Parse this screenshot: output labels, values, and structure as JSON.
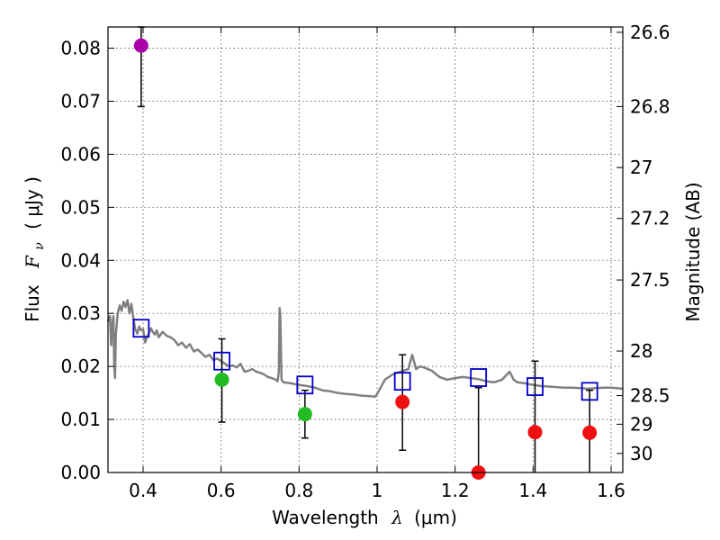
{
  "chart_data": {
    "type": "scatter",
    "xlabel_prefix": "Wavelength",
    "xlabel_symbol": "λ",
    "xlabel_unit": "(μm)",
    "ylabel_prefix": "Flux",
    "ylabel_symbol": "F",
    "ylabel_subscript": "ν",
    "ylabel_unit": "( μJy )",
    "y2label": "Magnitude (AB)",
    "xlim": [
      0.31,
      1.63
    ],
    "ylim": [
      0.0,
      0.084
    ],
    "x_ticks": [
      0.4,
      0.6,
      0.8,
      1.0,
      1.2,
      1.4,
      1.6
    ],
    "x_tick_labels": [
      "0.4",
      "0.6",
      "0.8",
      "1",
      "1.2",
      "1.4",
      "1.6"
    ],
    "y_ticks": [
      0.0,
      0.01,
      0.02,
      0.03,
      0.04,
      0.05,
      0.06,
      0.07,
      0.08
    ],
    "y_tick_labels": [
      "0.00",
      "0.01",
      "0.02",
      "0.03",
      "0.04",
      "0.05",
      "0.06",
      "0.07",
      "0.08"
    ],
    "y2_ticks": [
      {
        "label": "26.6",
        "flux": 0.083
      },
      {
        "label": "26.8",
        "flux": 0.069
      },
      {
        "label": "27",
        "flux": 0.0575
      },
      {
        "label": "27.2",
        "flux": 0.0479
      },
      {
        "label": "27.5",
        "flux": 0.0363
      },
      {
        "label": "28",
        "flux": 0.0229
      },
      {
        "label": "28.5",
        "flux": 0.0145
      },
      {
        "label": "29",
        "flux": 0.0091
      },
      {
        "label": "30",
        "flux": 0.0036
      }
    ],
    "colors": {
      "model": "#808080",
      "model_boxes": "#0000cc",
      "purple": "#aa00aa",
      "green": "#22bb22",
      "red": "#ee1111",
      "errorbar": "#000000"
    },
    "model_spectrum": [
      [
        0.31,
        0.0285
      ],
      [
        0.315,
        0.0295
      ],
      [
        0.318,
        0.024
      ],
      [
        0.321,
        0.028
      ],
      [
        0.324,
        0.0295
      ],
      [
        0.326,
        0.02
      ],
      [
        0.328,
        0.0178
      ],
      [
        0.33,
        0.026
      ],
      [
        0.335,
        0.03
      ],
      [
        0.34,
        0.0315
      ],
      [
        0.345,
        0.0305
      ],
      [
        0.35,
        0.0322
      ],
      [
        0.355,
        0.0312
      ],
      [
        0.36,
        0.0325
      ],
      [
        0.365,
        0.03
      ],
      [
        0.37,
        0.0318
      ],
      [
        0.375,
        0.029
      ],
      [
        0.38,
        0.027
      ],
      [
        0.385,
        0.0262
      ],
      [
        0.39,
        0.0275
      ],
      [
        0.395,
        0.0268
      ],
      [
        0.4,
        0.027
      ],
      [
        0.405,
        0.0245
      ],
      [
        0.41,
        0.0255
      ],
      [
        0.415,
        0.0262
      ],
      [
        0.42,
        0.0272
      ],
      [
        0.425,
        0.0265
      ],
      [
        0.43,
        0.026
      ],
      [
        0.435,
        0.0268
      ],
      [
        0.44,
        0.0255
      ],
      [
        0.45,
        0.0265
      ],
      [
        0.46,
        0.0258
      ],
      [
        0.47,
        0.0255
      ],
      [
        0.48,
        0.025
      ],
      [
        0.49,
        0.024
      ],
      [
        0.5,
        0.0245
      ],
      [
        0.51,
        0.0235
      ],
      [
        0.52,
        0.0242
      ],
      [
        0.53,
        0.0228
      ],
      [
        0.54,
        0.0232
      ],
      [
        0.55,
        0.0225
      ],
      [
        0.56,
        0.0218
      ],
      [
        0.57,
        0.0222
      ],
      [
        0.58,
        0.0212
      ],
      [
        0.59,
        0.0215
      ],
      [
        0.6,
        0.021
      ],
      [
        0.61,
        0.0205
      ],
      [
        0.62,
        0.02
      ],
      [
        0.63,
        0.0202
      ],
      [
        0.64,
        0.0198
      ],
      [
        0.65,
        0.0205
      ],
      [
        0.66,
        0.019
      ],
      [
        0.67,
        0.0192
      ],
      [
        0.68,
        0.0195
      ],
      [
        0.69,
        0.019
      ],
      [
        0.7,
        0.0188
      ],
      [
        0.71,
        0.0185
      ],
      [
        0.72,
        0.018
      ],
      [
        0.73,
        0.0178
      ],
      [
        0.74,
        0.0175
      ],
      [
        0.745,
        0.0172
      ],
      [
        0.748,
        0.019
      ],
      [
        0.75,
        0.031
      ],
      [
        0.752,
        0.0295
      ],
      [
        0.755,
        0.0175
      ],
      [
        0.76,
        0.017
      ],
      [
        0.78,
        0.0168
      ],
      [
        0.8,
        0.0165
      ],
      [
        0.82,
        0.0163
      ],
      [
        0.84,
        0.016
      ],
      [
        0.86,
        0.0155
      ],
      [
        0.88,
        0.0153
      ],
      [
        0.9,
        0.015
      ],
      [
        0.92,
        0.0148
      ],
      [
        0.94,
        0.0147
      ],
      [
        0.96,
        0.0145
      ],
      [
        0.98,
        0.0144
      ],
      [
        0.995,
        0.0143
      ],
      [
        1.0,
        0.0148
      ],
      [
        1.02,
        0.0175
      ],
      [
        1.04,
        0.0185
      ],
      [
        1.06,
        0.019
      ],
      [
        1.08,
        0.0195
      ],
      [
        1.09,
        0.0222
      ],
      [
        1.1,
        0.0195
      ],
      [
        1.11,
        0.02
      ],
      [
        1.12,
        0.0198
      ],
      [
        1.14,
        0.0192
      ],
      [
        1.16,
        0.018
      ],
      [
        1.18,
        0.0175
      ],
      [
        1.2,
        0.0178
      ],
      [
        1.22,
        0.018
      ],
      [
        1.24,
        0.0178
      ],
      [
        1.26,
        0.0176
      ],
      [
        1.28,
        0.0172
      ],
      [
        1.3,
        0.017
      ],
      [
        1.32,
        0.0175
      ],
      [
        1.34,
        0.019
      ],
      [
        1.35,
        0.0175
      ],
      [
        1.36,
        0.017
      ],
      [
        1.38,
        0.0168
      ],
      [
        1.4,
        0.0165
      ],
      [
        1.42,
        0.0163
      ],
      [
        1.44,
        0.0162
      ],
      [
        1.46,
        0.0161
      ],
      [
        1.48,
        0.016
      ],
      [
        1.5,
        0.016
      ],
      [
        1.52,
        0.0159
      ],
      [
        1.54,
        0.0158
      ],
      [
        1.56,
        0.0159
      ],
      [
        1.58,
        0.016
      ],
      [
        1.6,
        0.016
      ],
      [
        1.63,
        0.0158
      ]
    ],
    "model_boxes": [
      {
        "x": 0.395,
        "y": 0.0272
      },
      {
        "x": 0.602,
        "y": 0.021
      },
      {
        "x": 0.815,
        "y": 0.0165
      },
      {
        "x": 1.065,
        "y": 0.0172
      },
      {
        "x": 1.26,
        "y": 0.0179
      },
      {
        "x": 1.405,
        "y": 0.0162
      },
      {
        "x": 1.545,
        "y": 0.0153
      }
    ],
    "observed_points": [
      {
        "x": 0.395,
        "y": 0.0805,
        "err_low": 0.069,
        "err_high": 0.084,
        "color_key": "purple"
      },
      {
        "x": 0.602,
        "y": 0.0175,
        "err_low": 0.0095,
        "err_high": 0.0252,
        "color_key": "green"
      },
      {
        "x": 0.815,
        "y": 0.011,
        "err_low": 0.0065,
        "err_high": 0.0155,
        "color_key": "green"
      },
      {
        "x": 1.065,
        "y": 0.0133,
        "err_low": 0.0042,
        "err_high": 0.0222,
        "color_key": "red"
      },
      {
        "x": 1.26,
        "y": 0.0,
        "err_low": 0.0,
        "err_high": 0.016,
        "color_key": "red"
      },
      {
        "x": 1.405,
        "y": 0.0076,
        "err_low": 0.0,
        "err_high": 0.021,
        "color_key": "red"
      },
      {
        "x": 1.545,
        "y": 0.0075,
        "err_low": 0.0,
        "err_high": 0.0155,
        "color_key": "red"
      }
    ]
  }
}
